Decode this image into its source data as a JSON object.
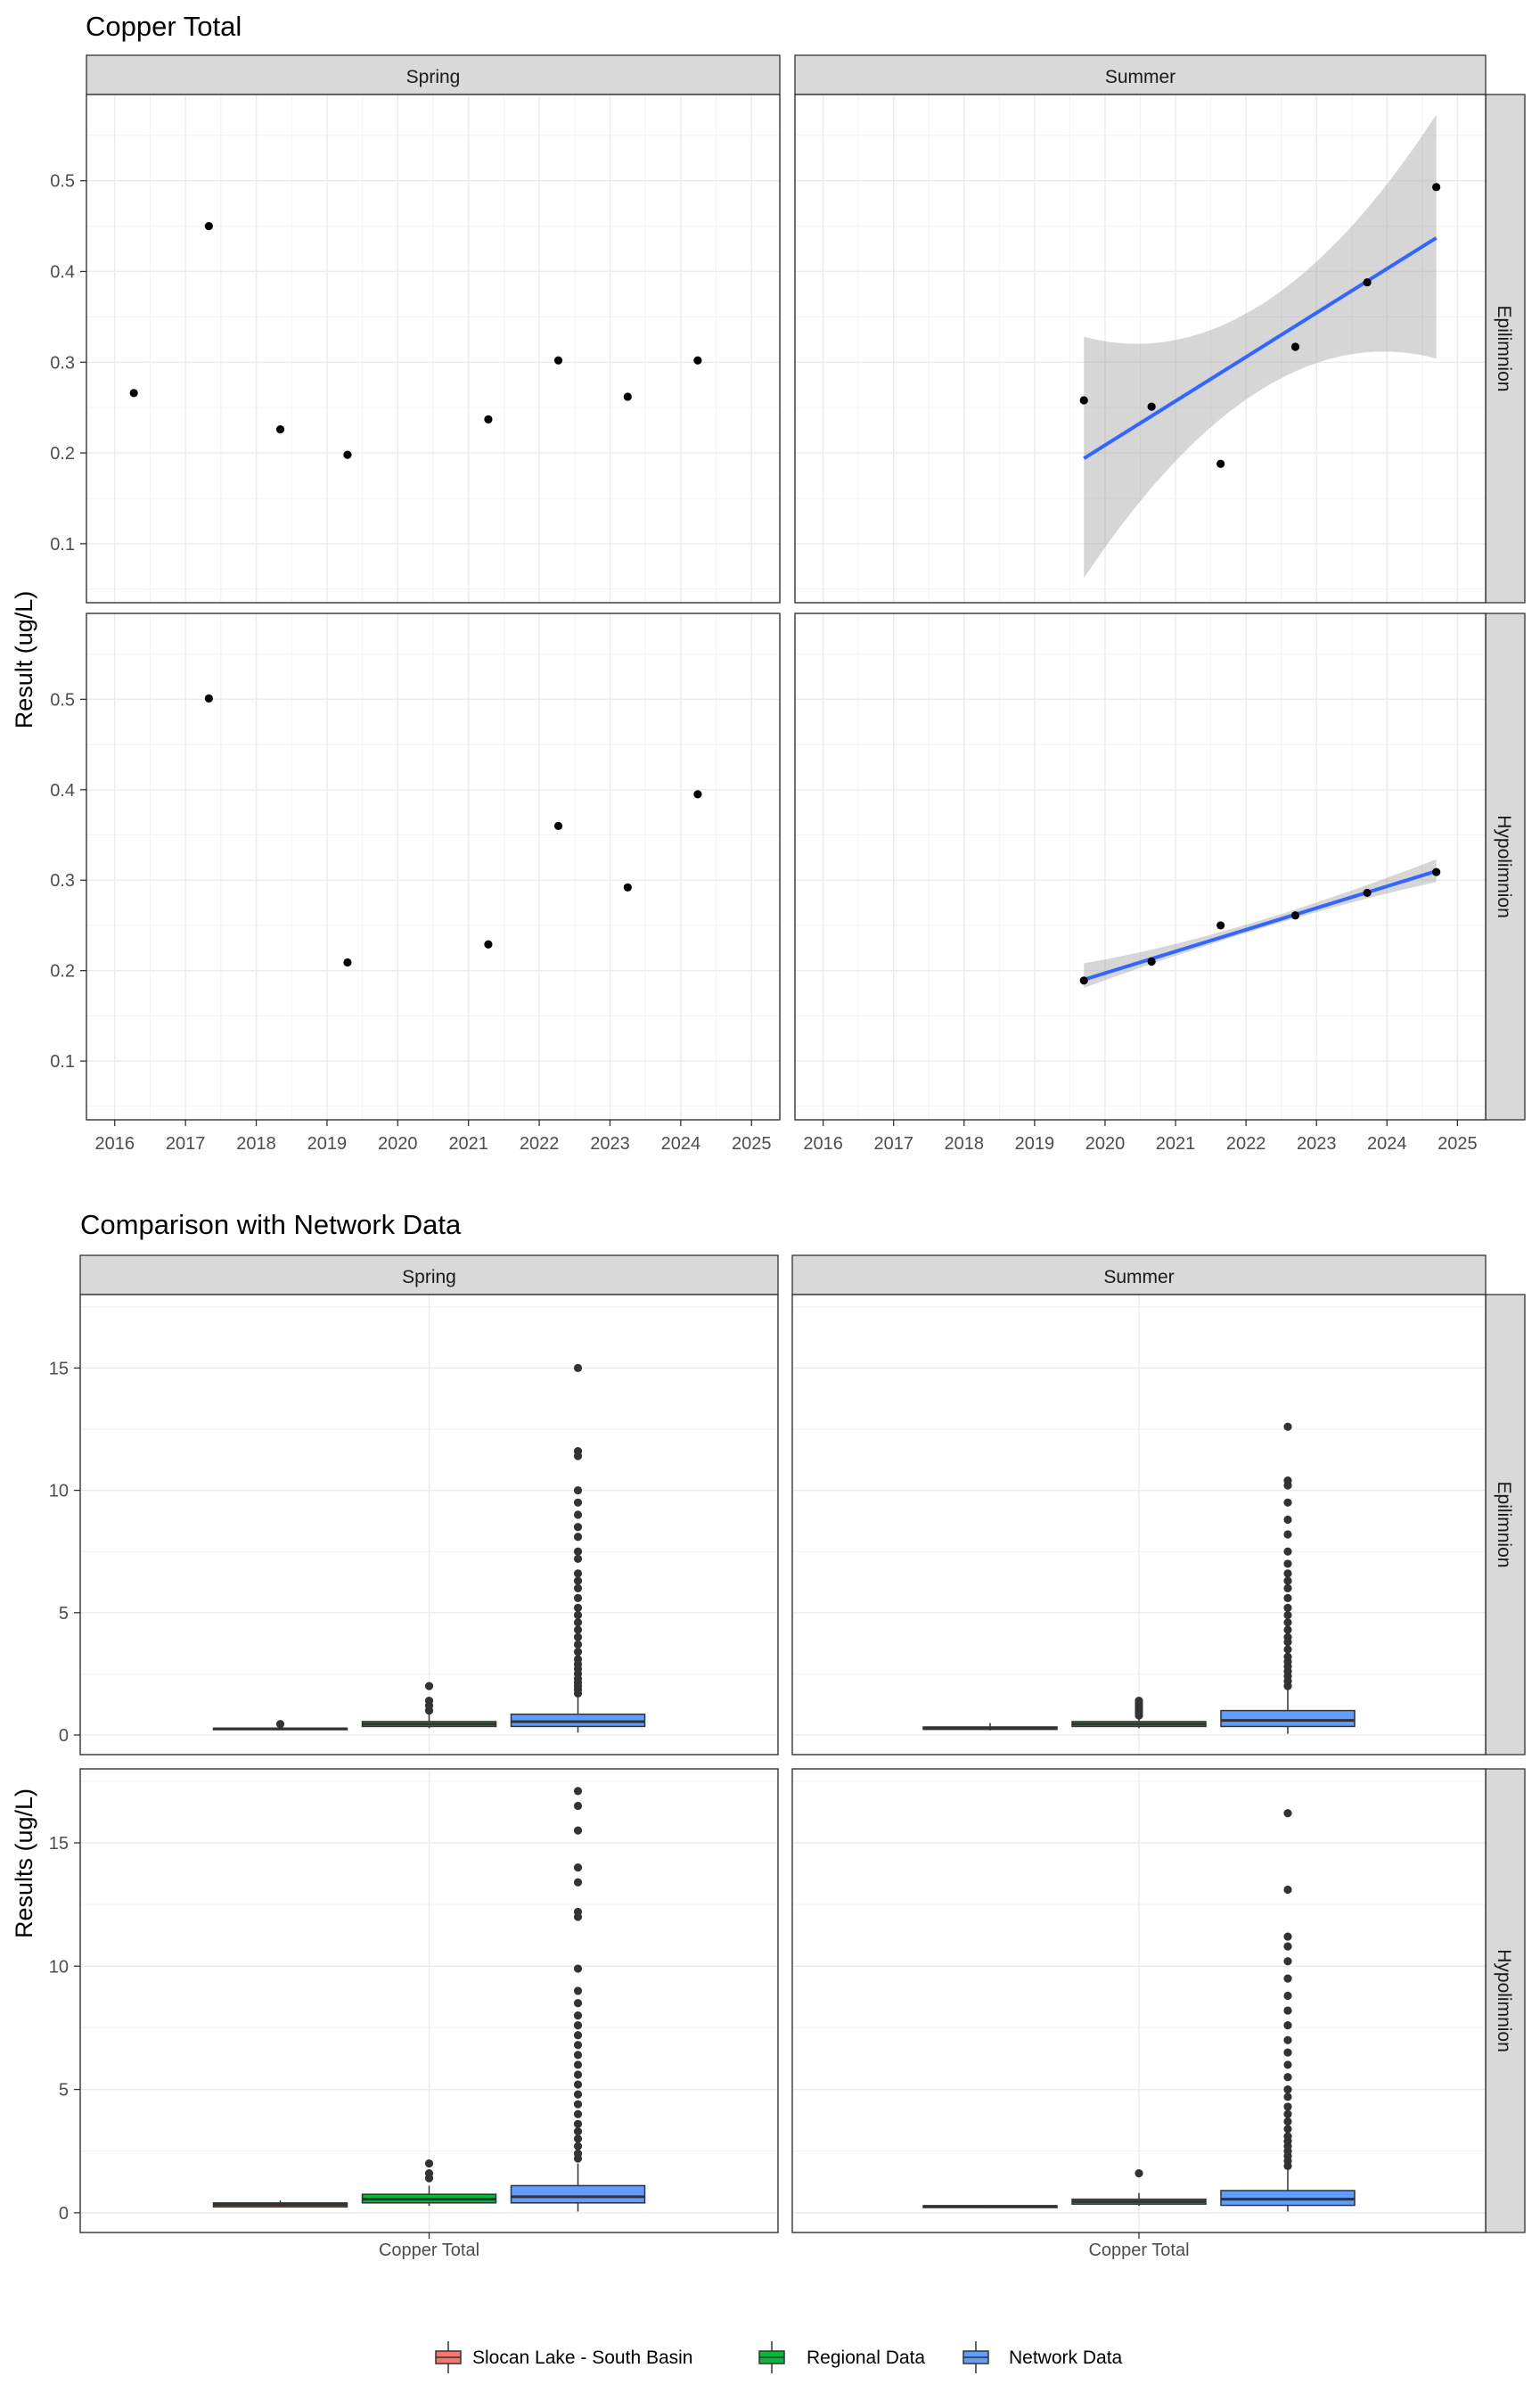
{
  "colors": {
    "slocan": "#F8766D",
    "regional": "#00BA38",
    "network": "#619CFF",
    "trend": "#3366FF",
    "ribbon": "#999999",
    "strip": "#D9D9D9",
    "point": "#000000",
    "outlier": "#333333"
  },
  "top": {
    "title": "Copper Total",
    "ylabel": "Result (ug/L)",
    "columns": [
      "Spring",
      "Summer"
    ],
    "rows": [
      "Epilimnion",
      "Hypolimnion"
    ],
    "xticks": [
      "2016",
      "2017",
      "2018",
      "2019",
      "2020",
      "2021",
      "2022",
      "2023",
      "2024",
      "2025"
    ],
    "yticks": [
      "0.1",
      "0.2",
      "0.3",
      "0.4",
      "0.5"
    ]
  },
  "bottom": {
    "title": "Comparison with Network Data",
    "ylabel": "Results (ug/L)",
    "columns": [
      "Spring",
      "Summer"
    ],
    "rows": [
      "Epilimnion",
      "Hypolimnion"
    ],
    "xtick": "Copper Total",
    "yticks": [
      "0",
      "5",
      "10",
      "15"
    ]
  },
  "legend": {
    "items": [
      {
        "label": "Slocan Lake - South Basin",
        "color": "#F8766D"
      },
      {
        "label": "Regional Data",
        "color": "#00BA38"
      },
      {
        "label": "Network Data",
        "color": "#619CFF"
      }
    ]
  },
  "chart_data": [
    {
      "type": "scatter",
      "title": "Copper Total",
      "ylabel": "Result (ug/L)",
      "facet_columns": [
        "Spring",
        "Summer"
      ],
      "facet_rows": [
        "Epilimnion",
        "Hypolimnion"
      ],
      "xlim": [
        2015.6,
        2025.4
      ],
      "ylim": [
        0.035,
        0.595
      ],
      "grid": true,
      "panels": [
        {
          "season": "Spring",
          "layer": "Epilimnion",
          "points": [
            [
              2016.27,
              0.266
            ],
            [
              2017.33,
              0.45
            ],
            [
              2018.34,
              0.226
            ],
            [
              2019.29,
              0.198
            ],
            [
              2021.28,
              0.237
            ],
            [
              2022.27,
              0.302
            ],
            [
              2023.25,
              0.262
            ],
            [
              2024.24,
              0.302
            ]
          ]
        },
        {
          "season": "Summer",
          "layer": "Epilimnion",
          "points": [
            [
              2019.7,
              0.258
            ],
            [
              2020.66,
              0.251
            ],
            [
              2021.64,
              0.188
            ],
            [
              2022.7,
              0.317
            ],
            [
              2023.72,
              0.388
            ],
            [
              2024.7,
              0.493
            ]
          ],
          "trend": {
            "x": [
              2019.7,
              2024.7
            ],
            "y": [
              0.194,
              0.437
            ],
            "ci_low": [
              0.062,
              0.304
            ],
            "ci_high": [
              0.328,
              0.573
            ]
          }
        },
        {
          "season": "Spring",
          "layer": "Hypolimnion",
          "points": [
            [
              2017.33,
              0.501
            ],
            [
              2019.29,
              0.209
            ],
            [
              2021.28,
              0.229
            ],
            [
              2022.27,
              0.36
            ],
            [
              2023.25,
              0.292
            ],
            [
              2024.24,
              0.395
            ]
          ]
        },
        {
          "season": "Summer",
          "layer": "Hypolimnion",
          "points": [
            [
              2019.7,
              0.189
            ],
            [
              2020.66,
              0.21
            ],
            [
              2021.64,
              0.25
            ],
            [
              2022.7,
              0.261
            ],
            [
              2023.72,
              0.286
            ],
            [
              2024.7,
              0.309
            ]
          ],
          "trend": {
            "x": [
              2019.7,
              2024.7
            ],
            "y": [
              0.19,
              0.31
            ],
            "ci_low": [
              0.181,
              0.298
            ],
            "ci_high": [
              0.208,
              0.323
            ]
          }
        }
      ]
    },
    {
      "type": "box",
      "title": "Comparison with Network Data",
      "ylabel": "Results (ug/L)",
      "category": "Copper Total",
      "series_names": [
        "Slocan Lake - South Basin",
        "Regional Data",
        "Network Data"
      ],
      "ylim": [
        -0.8,
        18.0
      ],
      "grid": true,
      "legend": "bottom",
      "panels": [
        {
          "season": "Spring",
          "layer": "Epilimnion",
          "boxes": [
            {
              "name": "Slocan Lake - South Basin",
              "min": 0.2,
              "q1": 0.22,
              "median": 0.25,
              "q3": 0.28,
              "max": 0.3,
              "outliers": [
                0.45
              ]
            },
            {
              "name": "Regional Data",
              "min": 0.28,
              "q1": 0.35,
              "median": 0.45,
              "q3": 0.55,
              "max": 0.85,
              "outliers": [
                1.0,
                1.2,
                1.4,
                2.0
              ]
            },
            {
              "name": "Network Data",
              "min": 0.1,
              "q1": 0.35,
              "median": 0.55,
              "q3": 0.85,
              "max": 1.6,
              "outliers": [
                1.7,
                1.85,
                2.0,
                2.15,
                2.3,
                2.5,
                2.7,
                2.9,
                3.1,
                3.4,
                3.7,
                4.0,
                4.3,
                4.6,
                4.9,
                5.2,
                5.6,
                6.0,
                6.3,
                6.6,
                7.2,
                7.5,
                8.1,
                8.5,
                9.0,
                9.5,
                10.0,
                11.4,
                11.6,
                15.0
              ]
            }
          ]
        },
        {
          "season": "Summer",
          "layer": "Epilimnion",
          "boxes": [
            {
              "name": "Slocan Lake - South Basin",
              "min": 0.19,
              "q1": 0.23,
              "median": 0.28,
              "q3": 0.33,
              "max": 0.49,
              "outliers": []
            },
            {
              "name": "Regional Data",
              "min": 0.28,
              "q1": 0.35,
              "median": 0.45,
              "q3": 0.55,
              "max": 0.7,
              "outliers": [
                0.8,
                0.9,
                1.0,
                1.1,
                1.2,
                1.3,
                1.4
              ]
            },
            {
              "name": "Network Data",
              "min": 0.05,
              "q1": 0.35,
              "median": 0.6,
              "q3": 1.0,
              "max": 1.9,
              "outliers": [
                2.0,
                2.2,
                2.4,
                2.6,
                2.8,
                3.0,
                3.2,
                3.5,
                3.8,
                4.0,
                4.3,
                4.6,
                4.9,
                5.2,
                5.6,
                6.0,
                6.3,
                6.6,
                7.0,
                7.5,
                8.2,
                8.8,
                9.5,
                10.2,
                10.4,
                12.6
              ]
            }
          ]
        },
        {
          "season": "Spring",
          "layer": "Hypolimnion",
          "boxes": [
            {
              "name": "Slocan Lake - South Basin",
              "min": 0.21,
              "q1": 0.24,
              "median": 0.33,
              "q3": 0.4,
              "max": 0.5,
              "outliers": []
            },
            {
              "name": "Regional Data",
              "min": 0.28,
              "q1": 0.4,
              "median": 0.55,
              "q3": 0.75,
              "max": 1.1,
              "outliers": [
                1.4,
                1.6,
                2.0
              ]
            },
            {
              "name": "Network Data",
              "min": 0.05,
              "q1": 0.4,
              "median": 0.65,
              "q3": 1.1,
              "max": 2.0,
              "outliers": [
                2.2,
                2.4,
                2.7,
                3.0,
                3.3,
                3.6,
                4.0,
                4.4,
                4.8,
                5.2,
                5.6,
                6.0,
                6.4,
                6.8,
                7.2,
                7.6,
                8.0,
                8.5,
                9.0,
                9.9,
                12.0,
                12.2,
                13.4,
                14.0,
                15.5,
                16.5,
                17.1
              ]
            }
          ]
        },
        {
          "season": "Summer",
          "layer": "Hypolimnion",
          "boxes": [
            {
              "name": "Slocan Lake - South Basin",
              "min": 0.19,
              "q1": 0.21,
              "median": 0.25,
              "q3": 0.29,
              "max": 0.31,
              "outliers": []
            },
            {
              "name": "Regional Data",
              "min": 0.28,
              "q1": 0.35,
              "median": 0.45,
              "q3": 0.55,
              "max": 0.8,
              "outliers": [
                1.6
              ]
            },
            {
              "name": "Network Data",
              "min": 0.05,
              "q1": 0.3,
              "median": 0.55,
              "q3": 0.9,
              "max": 1.8,
              "outliers": [
                1.9,
                2.1,
                2.3,
                2.5,
                2.7,
                2.9,
                3.1,
                3.4,
                3.7,
                4.0,
                4.3,
                4.7,
                5.0,
                5.5,
                6.0,
                6.5,
                7.0,
                7.6,
                8.2,
                8.8,
                9.5,
                10.2,
                10.8,
                11.2,
                13.1,
                16.2
              ]
            }
          ]
        }
      ]
    }
  ]
}
